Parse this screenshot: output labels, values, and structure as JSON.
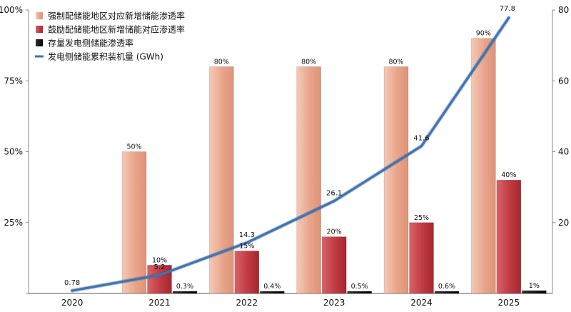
{
  "chart_data": {
    "type": "bar",
    "categories": [
      "2020",
      "2021",
      "2022",
      "2023",
      "2024",
      "2025"
    ],
    "ylim_left": [
      0,
      100
    ],
    "ylim_right": [
      0,
      80
    ],
    "left_ticks": [
      "0%",
      "25%",
      "50%",
      "75%",
      "100%"
    ],
    "left_tick_values": [
      0,
      25,
      50,
      75,
      100
    ],
    "right_ticks": [
      "20",
      "40",
      "60",
      "80"
    ],
    "right_tick_values": [
      20,
      40,
      60,
      80
    ],
    "legend_position": "top-left",
    "grid": false,
    "series": [
      {
        "name": "强制配储能地区对应新增储能渗透率",
        "kind": "bar",
        "axis": "left",
        "color": "#e8a48a",
        "values": [
          null,
          50,
          80,
          80,
          80,
          90
        ],
        "labels": [
          "",
          "50%",
          "80%",
          "80%",
          "80%",
          "90%"
        ]
      },
      {
        "name": "鼓励配储能地区新增储能对应渗透率",
        "kind": "bar",
        "axis": "left",
        "color": "#c0393f",
        "values": [
          null,
          10,
          15,
          20,
          25,
          40
        ],
        "labels": [
          "",
          "10%",
          "15%",
          "20%",
          "25%",
          "40%"
        ]
      },
      {
        "name": "存量发电侧储能渗透率",
        "kind": "bar",
        "axis": "left",
        "color": "#111111",
        "values": [
          null,
          0.3,
          0.4,
          0.5,
          0.6,
          1
        ],
        "labels": [
          "",
          "0.3%",
          "0.4%",
          "0.5%",
          "0.6%",
          "1%"
        ]
      },
      {
        "name": "发电侧储能累积装机量 (GWh)",
        "kind": "line",
        "axis": "right",
        "color": "#3f74b0",
        "values": [
          0.78,
          5.2,
          14.3,
          26.1,
          41.6,
          77.8
        ],
        "labels": [
          "0.78",
          "5.2",
          "14.3",
          "26.1",
          "41.6",
          "77.8"
        ]
      }
    ]
  }
}
